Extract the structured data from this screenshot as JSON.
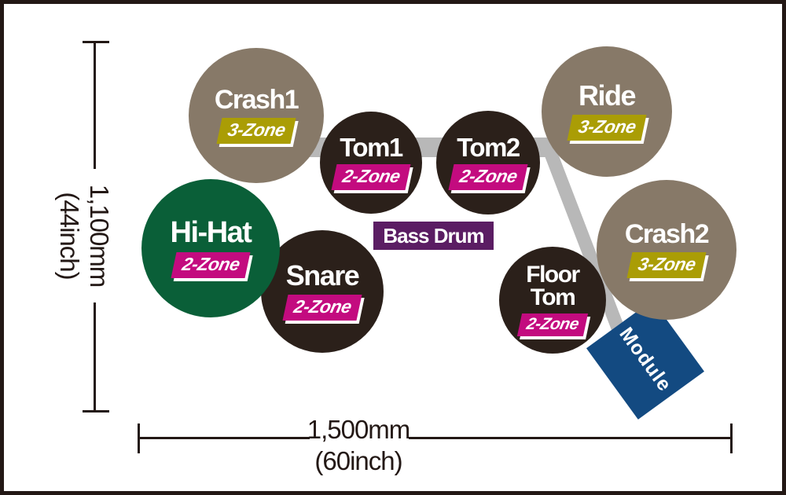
{
  "title": "Electronic drum kit footprint diagram",
  "colors": {
    "ink": "#231815",
    "pad_taupe": "#877968",
    "pad_dark": "#2b201a",
    "pad_green": "#0a5f38",
    "zone3_olive": "#aa9d05",
    "zone2_magenta": "#c30b7f",
    "bass_drum_purple": "#5b1d63",
    "module_blue": "#134a81",
    "rack_tube_gray": "#b8b8b8",
    "background": "#ffffff"
  },
  "pads": [
    {
      "id": "crash1",
      "label": "Crash1",
      "zone_label": "3-Zone",
      "zones": 3,
      "color": "taupe"
    },
    {
      "id": "tom1",
      "label": "Tom1",
      "zone_label": "2-Zone",
      "zones": 2,
      "color": "dark"
    },
    {
      "id": "tom2",
      "label": "Tom2",
      "zone_label": "2-Zone",
      "zones": 2,
      "color": "dark"
    },
    {
      "id": "ride",
      "label": "Ride",
      "zone_label": "3-Zone",
      "zones": 3,
      "color": "taupe"
    },
    {
      "id": "snare",
      "label": "Snare",
      "zone_label": "2-Zone",
      "zones": 2,
      "color": "dark"
    },
    {
      "id": "hihat",
      "label": "Hi-Hat",
      "zone_label": "2-Zone",
      "zones": 2,
      "color": "green"
    },
    {
      "id": "floortom",
      "label": "Floor Tom",
      "zone_label": "2-Zone",
      "zones": 2,
      "color": "dark"
    },
    {
      "id": "crash2",
      "label": "Crash2",
      "zone_label": "3-Zone",
      "zones": 3,
      "color": "taupe"
    }
  ],
  "bass_drum": {
    "label": "Bass Drum"
  },
  "module": {
    "label": "Module"
  },
  "dimensions": {
    "height": {
      "value": "1,100mm",
      "inches": "(44inch)"
    },
    "width": {
      "value": "1,500mm",
      "inches": "(60inch)"
    }
  }
}
